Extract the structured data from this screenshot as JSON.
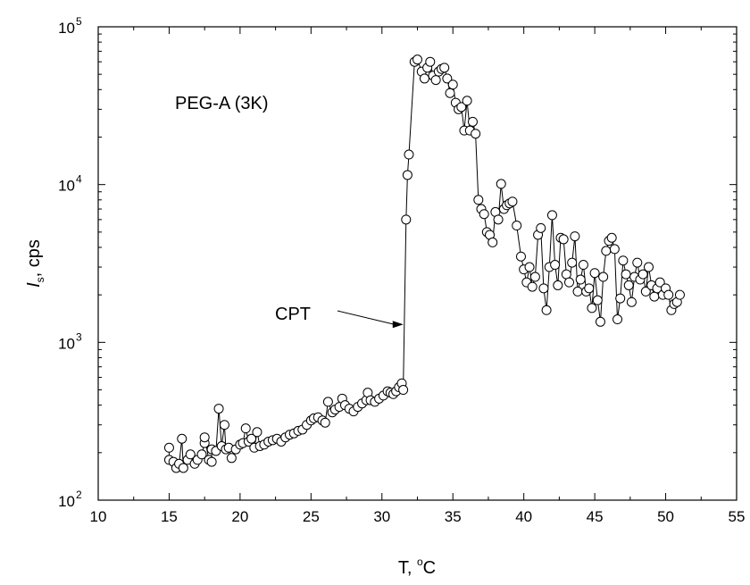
{
  "chart_data": {
    "type": "line",
    "title": "",
    "xlabel": "T, °C",
    "ylabel": "Is, cps",
    "ylabel_main": "I",
    "ylabel_sub": "s",
    "ylabel_rest": ", cps",
    "xlabel_main": "T, ",
    "xlabel_sup": "o",
    "xlabel_rest": "C",
    "xlim": [
      10,
      55
    ],
    "ylim": [
      100,
      100000
    ],
    "yscale": "log",
    "x_ticks": [
      10,
      15,
      20,
      25,
      30,
      35,
      40,
      45,
      50,
      55
    ],
    "x_tick_labels": [
      "10",
      "15",
      "20",
      "25",
      "30",
      "35",
      "40",
      "45",
      "50",
      "55"
    ],
    "y_ticks": [
      100,
      1000,
      10000,
      100000
    ],
    "y_tick_labels": [
      {
        "base": "10",
        "exp": "2"
      },
      {
        "base": "10",
        "exp": "3"
      },
      {
        "base": "10",
        "exp": "4"
      },
      {
        "base": "10",
        "exp": "5"
      }
    ],
    "grid": false,
    "legend": "none",
    "series_label": "PEG-A (3K)",
    "annotation": {
      "text": "CPT",
      "arrow_to": {
        "x": 31.7,
        "y": 1300
      }
    },
    "marker_color": "#000000",
    "line_color": "#000000",
    "series": [
      {
        "values": [
          [
            15.0,
            215
          ],
          [
            15.0,
            180
          ],
          [
            15.3,
            175
          ],
          [
            15.5,
            160
          ],
          [
            15.7,
            170
          ],
          [
            15.9,
            245
          ],
          [
            16.0,
            160
          ],
          [
            16.3,
            180
          ],
          [
            16.5,
            195
          ],
          [
            16.8,
            170
          ],
          [
            17.0,
            180
          ],
          [
            17.3,
            195
          ],
          [
            17.5,
            230
          ],
          [
            17.5,
            250
          ],
          [
            17.8,
            180
          ],
          [
            18.0,
            175
          ],
          [
            18.0,
            210
          ],
          [
            18.3,
            205
          ],
          [
            18.5,
            380
          ],
          [
            18.7,
            220
          ],
          [
            18.9,
            300
          ],
          [
            19.0,
            210
          ],
          [
            19.2,
            215
          ],
          [
            19.4,
            185
          ],
          [
            19.7,
            210
          ],
          [
            20.0,
            225
          ],
          [
            20.2,
            230
          ],
          [
            20.4,
            285
          ],
          [
            20.6,
            235
          ],
          [
            20.8,
            245
          ],
          [
            21.0,
            215
          ],
          [
            21.2,
            270
          ],
          [
            21.4,
            220
          ],
          [
            21.7,
            225
          ],
          [
            22.0,
            235
          ],
          [
            22.3,
            240
          ],
          [
            22.6,
            245
          ],
          [
            22.9,
            235
          ],
          [
            23.2,
            250
          ],
          [
            23.5,
            260
          ],
          [
            23.8,
            265
          ],
          [
            24.1,
            275
          ],
          [
            24.4,
            280
          ],
          [
            24.7,
            300
          ],
          [
            25.0,
            320
          ],
          [
            25.2,
            330
          ],
          [
            25.5,
            335
          ],
          [
            25.8,
            320
          ],
          [
            26.0,
            310
          ],
          [
            26.2,
            420
          ],
          [
            26.5,
            360
          ],
          [
            26.7,
            375
          ],
          [
            27.0,
            390
          ],
          [
            27.2,
            440
          ],
          [
            27.4,
            400
          ],
          [
            27.7,
            380
          ],
          [
            28.0,
            365
          ],
          [
            28.3,
            390
          ],
          [
            28.6,
            410
          ],
          [
            28.9,
            430
          ],
          [
            29.0,
            480
          ],
          [
            29.2,
            430
          ],
          [
            29.5,
            420
          ],
          [
            29.8,
            440
          ],
          [
            30.1,
            460
          ],
          [
            30.4,
            490
          ],
          [
            30.6,
            480
          ],
          [
            30.8,
            470
          ],
          [
            31.0,
            490
          ],
          [
            31.2,
            520
          ],
          [
            31.4,
            550
          ],
          [
            31.5,
            500
          ],
          [
            31.7,
            6000
          ],
          [
            31.8,
            11500
          ],
          [
            31.9,
            15500
          ],
          [
            32.3,
            60000
          ],
          [
            32.5,
            62000
          ],
          [
            32.8,
            52000
          ],
          [
            33.0,
            47000
          ],
          [
            33.2,
            55000
          ],
          [
            33.4,
            60000
          ],
          [
            33.6,
            49000
          ],
          [
            33.8,
            46000
          ],
          [
            34.0,
            52000
          ],
          [
            34.2,
            54000
          ],
          [
            34.4,
            55000
          ],
          [
            34.6,
            47000
          ],
          [
            34.8,
            38000
          ],
          [
            35.0,
            43000
          ],
          [
            35.2,
            33000
          ],
          [
            35.4,
            30000
          ],
          [
            35.6,
            31000
          ],
          [
            35.8,
            22000
          ],
          [
            36.0,
            34000
          ],
          [
            36.2,
            22000
          ],
          [
            36.4,
            25000
          ],
          [
            36.6,
            21000
          ],
          [
            36.8,
            8000
          ],
          [
            37.0,
            7000
          ],
          [
            37.2,
            6500
          ],
          [
            37.4,
            5000
          ],
          [
            37.6,
            4800
          ],
          [
            37.8,
            4300
          ],
          [
            38.0,
            6700
          ],
          [
            38.2,
            6000
          ],
          [
            38.4,
            10100
          ],
          [
            38.6,
            7000
          ],
          [
            38.8,
            7400
          ],
          [
            39.0,
            7600
          ],
          [
            39.2,
            7800
          ],
          [
            39.5,
            5500
          ],
          [
            39.8,
            3500
          ],
          [
            40.0,
            2900
          ],
          [
            40.2,
            2400
          ],
          [
            40.4,
            3000
          ],
          [
            40.6,
            2250
          ],
          [
            40.8,
            2600
          ],
          [
            41.0,
            4800
          ],
          [
            41.2,
            5300
          ],
          [
            41.4,
            2200
          ],
          [
            41.6,
            1600
          ],
          [
            41.8,
            3000
          ],
          [
            42.0,
            6400
          ],
          [
            42.2,
            3100
          ],
          [
            42.4,
            2300
          ],
          [
            42.6,
            4600
          ],
          [
            42.8,
            4500
          ],
          [
            43.0,
            2700
          ],
          [
            43.2,
            2400
          ],
          [
            43.4,
            3200
          ],
          [
            43.6,
            4700
          ],
          [
            43.8,
            2100
          ],
          [
            44.0,
            2500
          ],
          [
            44.2,
            3100
          ],
          [
            44.4,
            2100
          ],
          [
            44.6,
            2200
          ],
          [
            44.8,
            1650
          ],
          [
            45.0,
            2750
          ],
          [
            45.2,
            1850
          ],
          [
            45.4,
            1350
          ],
          [
            45.6,
            2600
          ],
          [
            45.8,
            3800
          ],
          [
            46.0,
            4400
          ],
          [
            46.2,
            4600
          ],
          [
            46.4,
            3900
          ],
          [
            46.6,
            1400
          ],
          [
            46.8,
            1900
          ],
          [
            47.0,
            3300
          ],
          [
            47.2,
            2700
          ],
          [
            47.4,
            2300
          ],
          [
            47.6,
            1800
          ],
          [
            47.8,
            2600
          ],
          [
            48.0,
            3200
          ],
          [
            48.2,
            2500
          ],
          [
            48.4,
            2700
          ],
          [
            48.6,
            2100
          ],
          [
            48.8,
            3000
          ],
          [
            49.0,
            2300
          ],
          [
            49.2,
            1950
          ],
          [
            49.4,
            2200
          ],
          [
            49.6,
            2400
          ],
          [
            49.8,
            2000
          ],
          [
            50.0,
            2200
          ],
          [
            50.2,
            2000
          ],
          [
            50.4,
            1600
          ],
          [
            50.6,
            1750
          ],
          [
            50.8,
            1800
          ],
          [
            51.0,
            2000
          ]
        ]
      }
    ]
  }
}
